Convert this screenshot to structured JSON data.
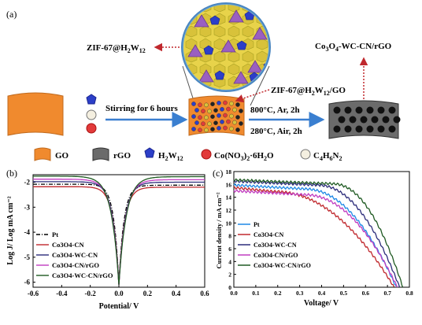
{
  "panel_a": {
    "label": "(a)",
    "zif_label": "ZIF-67@H2W12",
    "zif_go_label": "ZIF-67@H2W12/GO",
    "product_label": "Co3O4-WC-CN/rGO",
    "stirring_text": "Stirring for 6 hours",
    "step1_text": "800°C, Ar, 2h",
    "step2_text": "280°C, Air, 2h",
    "legend": {
      "go": "GO",
      "rgo": "rGO",
      "h2w12": "H2W12",
      "co_salt": "Co(NO3)2·6H2O",
      "c4h6n2": "C4H6N2"
    }
  },
  "panel_b": {
    "label": "(b)",
    "ylabel": "Log J/ Log mA cm⁻²",
    "xlabel": "Potential/ V"
  },
  "panel_c": {
    "label": "(c)",
    "ylabel": "Current density / mA cm⁻²",
    "xlabel": "Voltage/ V"
  },
  "chart_data": [
    {
      "type": "line",
      "xlabel": "Potential/ V",
      "ylabel": "Log J/ Log mA cm-2",
      "xlim": [
        -0.6,
        0.6
      ],
      "ylim": [
        -6.2,
        -1.7
      ],
      "x_ticks": [
        "-0.6",
        "-0.4",
        "-0.2",
        "0.0",
        "0.2",
        "0.4",
        "0.6"
      ],
      "y_ticks": [
        "-2",
        "-3",
        "-4",
        "-5",
        "-6"
      ],
      "legend_position": "lower-left",
      "series": [
        {
          "name": "Pt",
          "color": "#000000",
          "dash": "5,2,1,2",
          "plateau_left": -2.08,
          "plateau_right": -2.12,
          "min": -6.1
        },
        {
          "name": "Co3O4-CN",
          "color": "#c0282d",
          "dash": "",
          "plateau_left": -2.18,
          "plateau_right": -2.2,
          "min": -6.1
        },
        {
          "name": "Co3O4-WC-CN",
          "color": "#2c2c7a",
          "dash": "",
          "plateau_left": -1.98,
          "plateau_right": -2.0,
          "min": -6.1
        },
        {
          "name": "Co3O4-CN/rGO",
          "color": "#c03cc0",
          "dash": "",
          "plateau_left": -1.88,
          "plateau_right": -1.9,
          "min": -6.1
        },
        {
          "name": "Co3O4-WC-CN/rGO",
          "color": "#1f5a22",
          "dash": "",
          "plateau_left": -1.76,
          "plateau_right": -1.78,
          "min": -6.1
        }
      ]
    },
    {
      "type": "line",
      "xlabel": "Voltage/ V",
      "ylabel": "Current density / mA cm-2",
      "xlim": [
        0.0,
        0.8
      ],
      "ylim": [
        0,
        18
      ],
      "x_ticks": [
        "0.0",
        "0.1",
        "0.2",
        "0.3",
        "0.4",
        "0.5",
        "0.6",
        "0.7",
        "0.8"
      ],
      "y_ticks": [
        "0",
        "2",
        "4",
        "6",
        "8",
        "10",
        "12",
        "14",
        "16",
        "18"
      ],
      "legend_position": "left",
      "series": [
        {
          "name": "Pt",
          "color": "#1e88e5",
          "jsc": 15.9,
          "voc": 0.74,
          "knee": 0.32
        },
        {
          "name": "Co3O4-CN",
          "color": "#c0282d",
          "jsc": 15.5,
          "voc": 0.73,
          "knee": 0.18
        },
        {
          "name": "Co3O4-WC-CN",
          "color": "#2c2c7a",
          "jsc": 16.5,
          "voc": 0.755,
          "knee": 0.38
        },
        {
          "name": "Co3O4-CN/rGO",
          "color": "#c03cc0",
          "jsc": 15.0,
          "voc": 0.745,
          "knee": 0.32
        },
        {
          "name": "Co3O4-WC-CN/rGO",
          "color": "#1f5a22",
          "jsc": 16.7,
          "voc": 0.77,
          "knee": 0.45
        }
      ]
    }
  ]
}
